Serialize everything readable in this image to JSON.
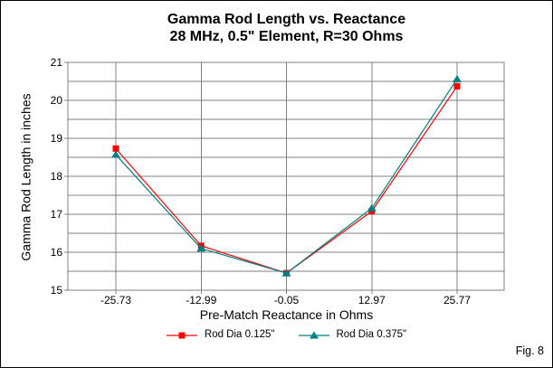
{
  "figure": {
    "caption": "Fig. 8"
  },
  "chart_data": {
    "type": "line",
    "title": "Gamma Rod Length vs. Reactance",
    "subtitle": "28 MHz, 0.5\" Element, R=30 Ohms",
    "xlabel": "Pre-Match Reactance in Ohms",
    "ylabel": "Gamma Rod Length in inches",
    "categories": [
      "-25.73",
      "-12.99",
      "-0.05",
      "12.97",
      "25.77"
    ],
    "y_ticks": [
      21,
      20,
      19,
      18,
      17,
      16,
      15
    ],
    "ylim": [
      15,
      21
    ],
    "y_grid_step": 0.5,
    "grid": true,
    "legend_position": "bottom",
    "colors": {
      "gridline": "#808080",
      "plot_border": "#808080",
      "text": "#000000",
      "background": "#FFFFFF",
      "series1": "#FF0000",
      "series2": "#008080"
    },
    "series": [
      {
        "name": "Rod Dia 0.125\"",
        "marker": "square",
        "color": "#FF0000",
        "values": [
          18.73,
          16.17,
          15.45,
          17.08,
          20.37
        ]
      },
      {
        "name": "Rod Dia 0.375\"",
        "marker": "triangle",
        "color": "#008080",
        "values": [
          18.57,
          16.1,
          15.45,
          17.16,
          20.56
        ]
      }
    ]
  }
}
